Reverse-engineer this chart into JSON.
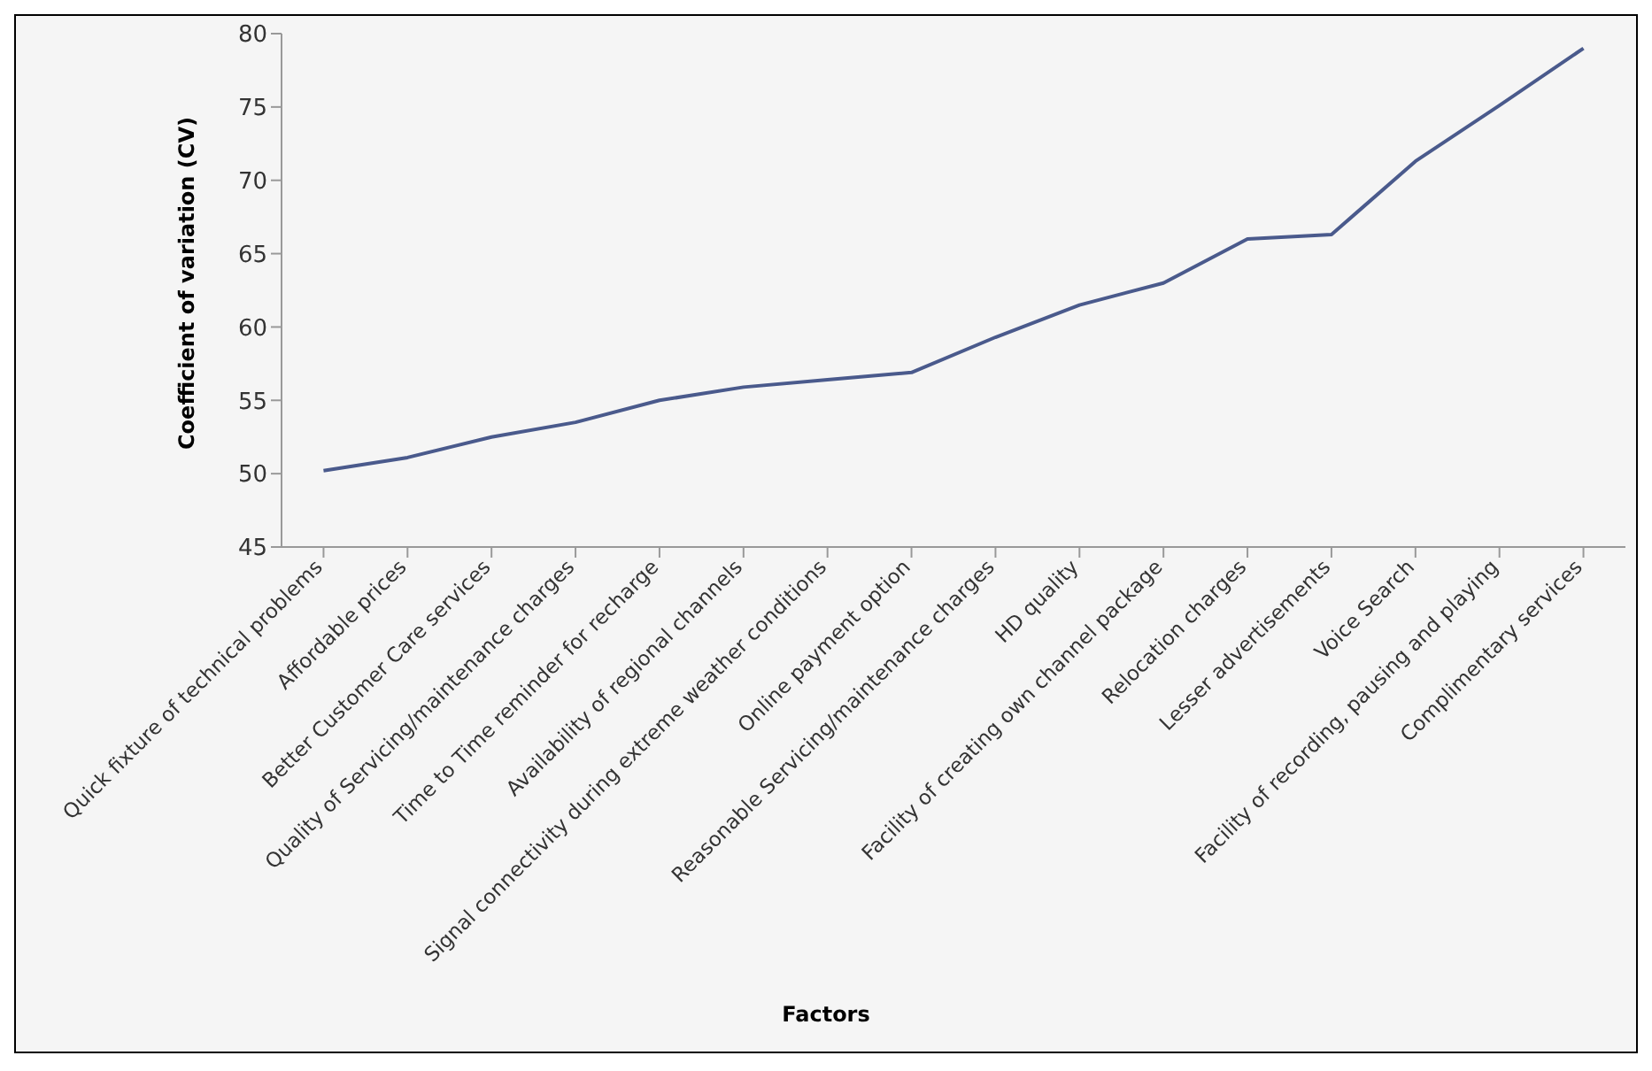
{
  "chart_data": {
    "type": "line",
    "xlabel": "Factors",
    "ylabel": "Coefficient of variation (CV)",
    "categories": [
      "Quick fixture of technical problems",
      "Affordable prices",
      "Better Customer Care services",
      "Quality of Servicing/maintenance charges",
      "Time to Time reminder for recharge",
      "Availability of regional channels",
      "Signal connectivity during extreme weather conditions",
      "Online payment option",
      "Reasonable Servicing/maintenance charges",
      "HD quality",
      "Facility of creating own channel package",
      "Relocation charges",
      "Lesser advertisements",
      "Voice Search",
      "Facility of recording, pausing and playing",
      "Complimentary services"
    ],
    "series": [
      {
        "color": "#4a5a8c",
        "values": [
          50.2,
          51.1,
          52.5,
          53.5,
          55,
          55.9,
          56.4,
          56.9,
          59.3,
          61.5,
          63,
          66,
          66.3,
          71.3,
          75.1,
          79
        ]
      }
    ],
    "ylim": [
      45,
      80
    ],
    "yticks": [
      45,
      50,
      55,
      60,
      65,
      70,
      75,
      80
    ],
    "grid": false,
    "legend": false,
    "marker": "none",
    "line_style": "solid"
  }
}
